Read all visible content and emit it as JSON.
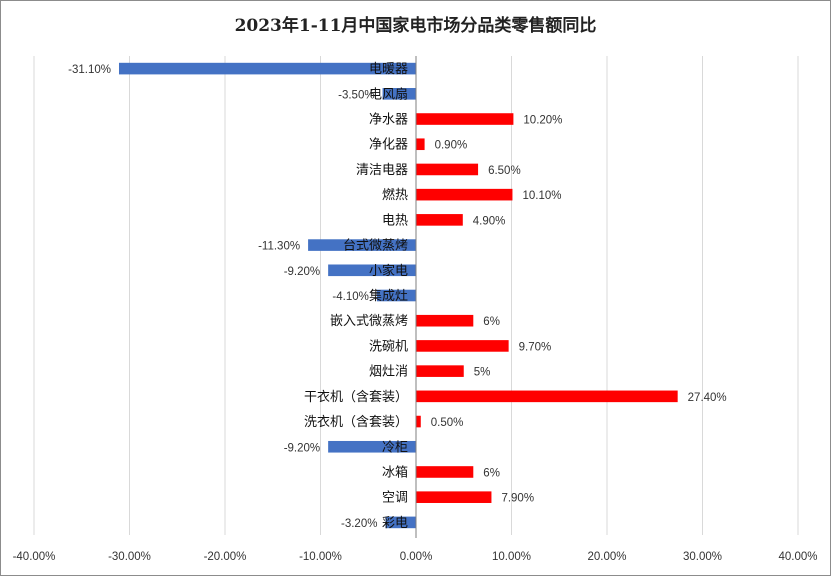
{
  "chart_data": {
    "type": "bar",
    "orientation": "horizontal",
    "title": "2023年1-11月中国家电市场分品类零售额同比",
    "xlim": [
      -40,
      40
    ],
    "x_ticks": [
      -40,
      -30,
      -20,
      -10,
      0,
      10,
      20,
      30,
      40
    ],
    "x_tick_labels": [
      "-40.00%",
      "-30.00%",
      "-20.00%",
      "-10.00%",
      "0.00%",
      "10.00%",
      "20.00%",
      "30.00%",
      "40.00%"
    ],
    "grid": true,
    "legend": "none",
    "colors": {
      "positive": "#ff0000",
      "negative": "#4472c4",
      "grid": "#d9d9d9",
      "axis": "#7f7f7f"
    },
    "categories": [
      "电暖器",
      "电风扇",
      "净水器",
      "净化器",
      "清洁电器",
      "燃热",
      "电热",
      "台式微蒸烤",
      "小家电",
      "集成灶",
      "嵌入式微蒸烤",
      "洗碗机",
      "烟灶消",
      "干衣机（含套装）",
      "洗衣机（含套装）",
      "冷柜",
      "冰箱",
      "空调",
      "彩电"
    ],
    "values": [
      -31.1,
      -3.5,
      10.2,
      0.9,
      6.5,
      10.1,
      4.9,
      -11.3,
      -9.2,
      -4.1,
      6,
      9.7,
      5,
      27.4,
      0.5,
      -9.2,
      6,
      7.9,
      -3.2
    ],
    "data_labels": [
      "-31.10%",
      "-3.50%",
      "10.20%",
      "0.90%",
      "6.50%",
      "10.10%",
      "4.90%",
      "-11.30%",
      "-9.20%",
      "-4.10%",
      "6%",
      "9.70%",
      "5%",
      "27.40%",
      "0.50%",
      "-9.20%",
      "6%",
      "7.90%",
      "-3.20%"
    ]
  }
}
